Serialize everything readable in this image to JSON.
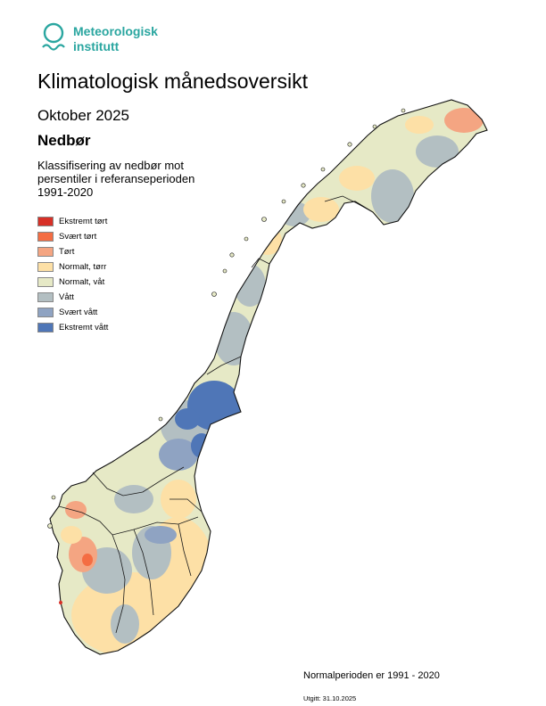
{
  "logo": {
    "line1": "Meteorologisk",
    "line2": "institutt",
    "color": "#2aa6a0"
  },
  "title": "Klimatologisk månedsoversikt",
  "month": "Oktober 2025",
  "parameter": "Nedbør",
  "subtitle": [
    "Klassifisering av nedbør mot",
    "persentiler i referanseperioden",
    "1991-2020"
  ],
  "legend": [
    {
      "label": "Ekstremt tørt",
      "color": "#d73027"
    },
    {
      "label": "Svært tørt",
      "color": "#f46d43"
    },
    {
      "label": "Tørt",
      "color": "#f4a582"
    },
    {
      "label": "Normalt, tørr",
      "color": "#fde0a6"
    },
    {
      "label": "Normalt, våt",
      "color": "#e6e9c6"
    },
    {
      "label": "Vått",
      "color": "#b3bfc2"
    },
    {
      "label": "Svært vått",
      "color": "#8fa3c2"
    },
    {
      "label": "Ekstremt vått",
      "color": "#4f76b7"
    }
  ],
  "normal_period": "Normalperioden er 1991 - 2020",
  "issued": "Utgitt: 31.10.2025"
}
